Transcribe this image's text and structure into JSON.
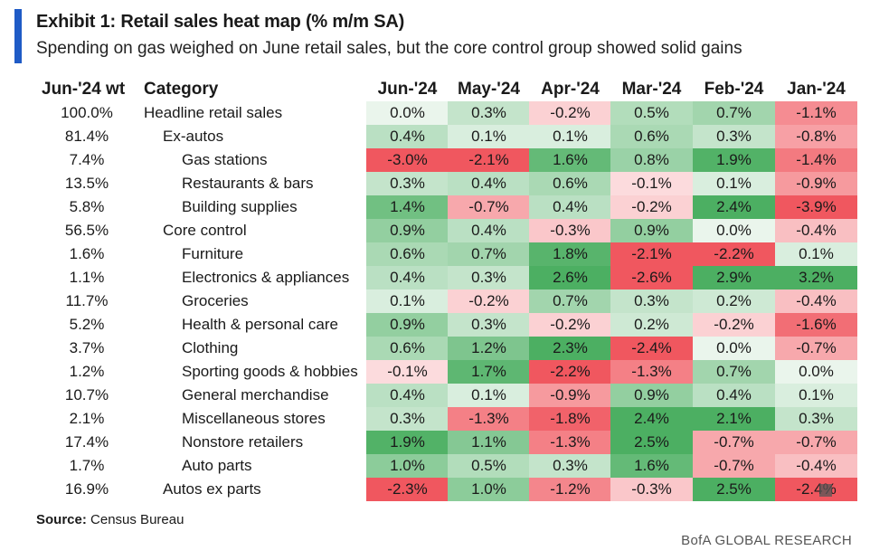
{
  "header": {
    "title": "Exhibit 1: Retail sales heat map (% m/m SA)",
    "subtitle": "Spending on gas weighed on June retail sales, but the core control group showed solid gains"
  },
  "footer": {
    "source_label": "Source:",
    "source_text": "Census Bureau",
    "brand": "BofA GLOBAL RESEARCH"
  },
  "colors": {
    "accent": "#1f5bc6",
    "positive_strong": "#4caf62",
    "negative_strong": "#f0575f",
    "neutral": "#ffffff"
  },
  "chart_data": {
    "type": "heatmap",
    "title": "Exhibit 1: Retail sales heat map (% m/m SA)",
    "subtitle": "Spending on gas weighed on June retail sales, but the core control group showed solid gains",
    "row_header_weight": "Jun-'24 wt",
    "row_header_category": "Category",
    "columns": [
      "Jun-'24",
      "May-'24",
      "Apr-'24",
      "Mar-'24",
      "Feb-'24",
      "Jan-'24"
    ],
    "rows": [
      {
        "weight": "100.0%",
        "category": "Headline retail sales",
        "level": 0,
        "values": [
          "0.0%",
          "0.3%",
          "-0.2%",
          "0.5%",
          "0.7%",
          "-1.1%"
        ],
        "nums": [
          0.0,
          0.3,
          -0.2,
          0.5,
          0.7,
          -1.1
        ]
      },
      {
        "weight": "81.4%",
        "category": "Ex-autos",
        "level": 1,
        "values": [
          "0.4%",
          "0.1%",
          "0.1%",
          "0.6%",
          "0.3%",
          "-0.8%"
        ],
        "nums": [
          0.4,
          0.1,
          0.1,
          0.6,
          0.3,
          -0.8
        ]
      },
      {
        "weight": "7.4%",
        "category": "Gas stations",
        "level": 2,
        "values": [
          "-3.0%",
          "-2.1%",
          "1.6%",
          "0.8%",
          "1.9%",
          "-1.4%"
        ],
        "nums": [
          -3.0,
          -2.1,
          1.6,
          0.8,
          1.9,
          -1.4
        ]
      },
      {
        "weight": "13.5%",
        "category": "Restaurants & bars",
        "level": 2,
        "values": [
          "0.3%",
          "0.4%",
          "0.6%",
          "-0.1%",
          "0.1%",
          "-0.9%"
        ],
        "nums": [
          0.3,
          0.4,
          0.6,
          -0.1,
          0.1,
          -0.9
        ]
      },
      {
        "weight": "5.8%",
        "category": "Building supplies",
        "level": 2,
        "values": [
          "1.4%",
          "-0.7%",
          "0.4%",
          "-0.2%",
          "2.4%",
          "-3.9%"
        ],
        "nums": [
          1.4,
          -0.7,
          0.4,
          -0.2,
          2.4,
          -3.9
        ]
      },
      {
        "weight": "56.5%",
        "category": "Core control",
        "level": 1,
        "values": [
          "0.9%",
          "0.4%",
          "-0.3%",
          "0.9%",
          "0.0%",
          "-0.4%"
        ],
        "nums": [
          0.9,
          0.4,
          -0.3,
          0.9,
          0.0,
          -0.4
        ]
      },
      {
        "weight": "1.6%",
        "category": "Furniture",
        "level": 2,
        "values": [
          "0.6%",
          "0.7%",
          "1.8%",
          "-2.1%",
          "-2.2%",
          "0.1%"
        ],
        "nums": [
          0.6,
          0.7,
          1.8,
          -2.1,
          -2.2,
          0.1
        ]
      },
      {
        "weight": "1.1%",
        "category": "Electronics & appliances",
        "level": 2,
        "values": [
          "0.4%",
          "0.3%",
          "2.6%",
          "-2.6%",
          "2.9%",
          "3.2%"
        ],
        "nums": [
          0.4,
          0.3,
          2.6,
          -2.6,
          2.9,
          3.2
        ]
      },
      {
        "weight": "11.7%",
        "category": "Groceries",
        "level": 2,
        "values": [
          "0.1%",
          "-0.2%",
          "0.7%",
          "0.3%",
          "0.2%",
          "-0.4%"
        ],
        "nums": [
          0.1,
          -0.2,
          0.7,
          0.3,
          0.2,
          -0.4
        ]
      },
      {
        "weight": "5.2%",
        "category": "Health & personal care",
        "level": 2,
        "values": [
          "0.9%",
          "0.3%",
          "-0.2%",
          "0.2%",
          "-0.2%",
          "-1.6%"
        ],
        "nums": [
          0.9,
          0.3,
          -0.2,
          0.2,
          -0.2,
          -1.6
        ]
      },
      {
        "weight": "3.7%",
        "category": "Clothing",
        "level": 2,
        "values": [
          "0.6%",
          "1.2%",
          "2.3%",
          "-2.4%",
          "0.0%",
          "-0.7%"
        ],
        "nums": [
          0.6,
          1.2,
          2.3,
          -2.4,
          0.0,
          -0.7
        ]
      },
      {
        "weight": "1.2%",
        "category": "Sporting goods & hobbies",
        "level": 2,
        "values": [
          "-0.1%",
          "1.7%",
          "-2.2%",
          "-1.3%",
          "0.7%",
          "0.0%"
        ],
        "nums": [
          -0.1,
          1.7,
          -2.2,
          -1.3,
          0.7,
          0.0
        ]
      },
      {
        "weight": "10.7%",
        "category": "General merchandise",
        "level": 2,
        "values": [
          "0.4%",
          "0.1%",
          "-0.9%",
          "0.9%",
          "0.4%",
          "0.1%"
        ],
        "nums": [
          0.4,
          0.1,
          -0.9,
          0.9,
          0.4,
          0.1
        ]
      },
      {
        "weight": "2.1%",
        "category": "Miscellaneous stores",
        "level": 2,
        "values": [
          "0.3%",
          "-1.3%",
          "-1.8%",
          "2.4%",
          "2.1%",
          "0.3%"
        ],
        "nums": [
          0.3,
          -1.3,
          -1.8,
          2.4,
          2.1,
          0.3
        ]
      },
      {
        "weight": "17.4%",
        "category": "Nonstore retailers",
        "level": 2,
        "values": [
          "1.9%",
          "1.1%",
          "-1.3%",
          "2.5%",
          "-0.7%",
          "-0.7%"
        ],
        "nums": [
          1.9,
          1.1,
          -1.3,
          2.5,
          -0.7,
          -0.7
        ]
      },
      {
        "weight": "1.7%",
        "category": "Auto parts",
        "level": 2,
        "values": [
          "1.0%",
          "0.5%",
          "0.3%",
          "1.6%",
          "-0.7%",
          "-0.4%"
        ],
        "nums": [
          1.0,
          0.5,
          0.3,
          1.6,
          -0.7,
          -0.4
        ]
      },
      {
        "weight": "16.9%",
        "category": "Autos ex parts",
        "level": 1,
        "values": [
          "-2.3%",
          "1.0%",
          "-1.2%",
          "-0.3%",
          "2.5%",
          "-2.4%"
        ],
        "nums": [
          -2.3,
          1.0,
          -1.2,
          -0.3,
          2.5,
          -2.4
        ]
      }
    ]
  }
}
